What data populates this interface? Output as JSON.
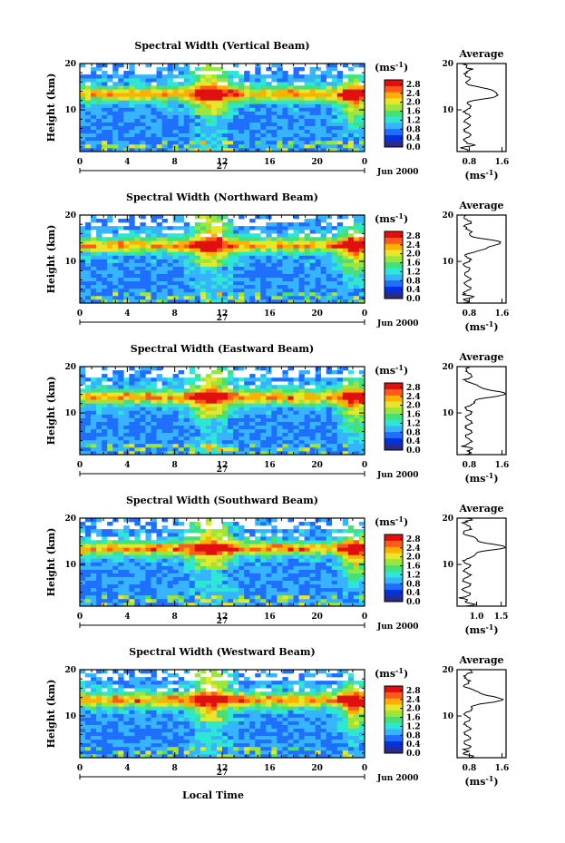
{
  "figure": {
    "xlabel": "Local Time",
    "date_label": "Jun 2000",
    "day_label": "27",
    "ylabel": "Height (km)",
    "cb_unit_base": "(ms",
    "cb_unit_exp": "-1",
    "cb_unit_close": ")",
    "avg_title": "Average",
    "colormap": [
      "#2a2a8c",
      "#0033dd",
      "#1f6fff",
      "#37b4ff",
      "#2ee6d4",
      "#44e07a",
      "#9ae63a",
      "#e6e62a",
      "#ffb000",
      "#ff5a1a",
      "#e01010"
    ]
  },
  "chart_data": [
    {
      "type": "heatmap",
      "title": "Spectral Width (Vertical Beam)",
      "x_ticks": [
        "0",
        "4",
        "8",
        "12",
        "16",
        "20",
        "0"
      ],
      "xlim": [
        0,
        24
      ],
      "y_ticks": [
        "20",
        "10"
      ],
      "ylim": [
        1,
        20
      ],
      "colorbar": {
        "ticks": [
          "2.8",
          "2.4",
          "2.0",
          "1.6",
          "1.2",
          "0.8",
          "0.4",
          "0.0"
        ],
        "range": [
          0,
          3.0
        ]
      },
      "average": {
        "title": "Average",
        "x_ticks": [
          "0.8",
          "1.6"
        ],
        "xlim": [
          0.5,
          1.7
        ],
        "y_ticks": [
          "20",
          "10"
        ],
        "ylim": [
          1,
          20
        ],
        "peak_height": 13.5,
        "peak_value": 1.55,
        "base_value": 0.75
      }
    },
    {
      "type": "heatmap",
      "title": "Spectral Width (Northward Beam)",
      "x_ticks": [
        "0",
        "4",
        "8",
        "12",
        "16",
        "20",
        "0"
      ],
      "xlim": [
        0,
        24
      ],
      "y_ticks": [
        "20",
        "10"
      ],
      "ylim": [
        1,
        20
      ],
      "colorbar": {
        "ticks": [
          "2.8",
          "2.4",
          "2.0",
          "1.6",
          "1.2",
          "0.8",
          "0.4",
          "0.0"
        ],
        "range": [
          0,
          3.0
        ]
      },
      "average": {
        "title": "Average",
        "x_ticks": [
          "0.8",
          "1.6"
        ],
        "xlim": [
          0.5,
          1.7
        ],
        "y_ticks": [
          "20",
          "10"
        ],
        "ylim": [
          1,
          20
        ],
        "peak_height": 13.8,
        "peak_value": 1.55,
        "base_value": 0.75
      }
    },
    {
      "type": "heatmap",
      "title": "Spectral Width (Eastward Beam)",
      "x_ticks": [
        "0",
        "4",
        "8",
        "12",
        "16",
        "20",
        "0"
      ],
      "xlim": [
        0,
        24
      ],
      "y_ticks": [
        "20",
        "10"
      ],
      "ylim": [
        1,
        20
      ],
      "colorbar": {
        "ticks": [
          "2.8",
          "2.4",
          "2.0",
          "1.6",
          "1.2",
          "0.8",
          "0.4",
          "0.0"
        ],
        "range": [
          0,
          3.0
        ]
      },
      "average": {
        "title": "Average",
        "x_ticks": [
          "0.8",
          "1.6"
        ],
        "xlim": [
          0.5,
          1.7
        ],
        "y_ticks": [
          "20",
          "10"
        ],
        "ylim": [
          1,
          20
        ],
        "peak_height": 14.2,
        "peak_value": 1.6,
        "base_value": 0.78
      }
    },
    {
      "type": "heatmap",
      "title": "Spectral Width (Southward Beam)",
      "x_ticks": [
        "0",
        "4",
        "8",
        "12",
        "16",
        "20",
        "0"
      ],
      "xlim": [
        0,
        24
      ],
      "y_ticks": [
        "20",
        "10"
      ],
      "ylim": [
        1,
        20
      ],
      "colorbar": {
        "ticks": [
          "2.8",
          "2.4",
          "2.0",
          "1.6",
          "1.2",
          "0.8",
          "0.4",
          "0.0"
        ],
        "range": [
          0,
          3.0
        ]
      },
      "average": {
        "title": "Average",
        "x_ticks": [
          "1.0",
          "1.5"
        ],
        "xlim": [
          0.6,
          1.6
        ],
        "y_ticks": [
          "20",
          "10"
        ],
        "ylim": [
          1,
          20
        ],
        "peak_height": 13.8,
        "peak_value": 1.5,
        "base_value": 0.8
      }
    },
    {
      "type": "heatmap",
      "title": "Spectral Width (Westward Beam)",
      "x_ticks": [
        "0",
        "4",
        "8",
        "12",
        "16",
        "20",
        "0"
      ],
      "xlim": [
        0,
        24
      ],
      "y_ticks": [
        "20",
        "10"
      ],
      "ylim": [
        1,
        20
      ],
      "colorbar": {
        "ticks": [
          "2.8",
          "2.4",
          "2.0",
          "1.6",
          "1.2",
          "0.8",
          "0.4",
          "0.0"
        ],
        "range": [
          0,
          3.0
        ]
      },
      "average": {
        "title": "Average",
        "x_ticks": [
          "0.8",
          "1.6"
        ],
        "xlim": [
          0.5,
          1.7
        ],
        "y_ticks": [
          "20",
          "10"
        ],
        "ylim": [
          1,
          20
        ],
        "peak_height": 13.7,
        "peak_value": 1.55,
        "base_value": 0.75
      }
    }
  ]
}
